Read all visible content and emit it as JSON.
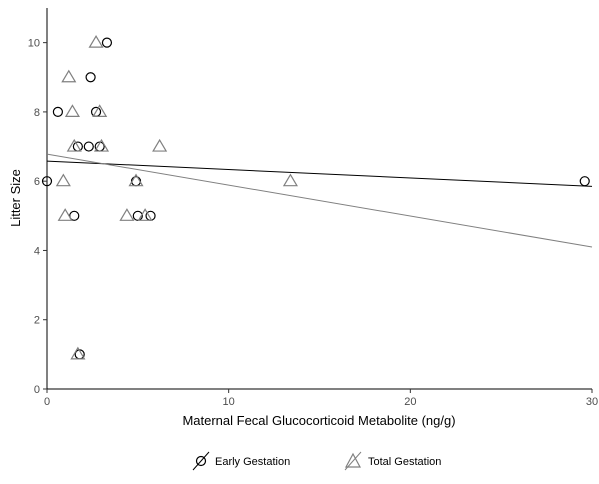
{
  "chart_data": {
    "type": "scatter",
    "xlabel": "Maternal Fecal Glucocorticoid Metabolite (ng/g)",
    "ylabel": "Litter Size",
    "xlim": [
      0,
      30
    ],
    "ylim": [
      0,
      11
    ],
    "x_ticks": [
      "0",
      "10",
      "20",
      "30"
    ],
    "y_ticks": [
      "0",
      "2",
      "4",
      "6",
      "8",
      "10"
    ],
    "grid": false,
    "legend_position": "bottom",
    "series": [
      {
        "name": "Early Gestation",
        "marker": "circle",
        "line_color": "#000000",
        "points": [
          {
            "x": 0.0,
            "y": 6
          },
          {
            "x": 0.6,
            "y": 8
          },
          {
            "x": 1.5,
            "y": 5
          },
          {
            "x": 1.7,
            "y": 7
          },
          {
            "x": 1.8,
            "y": 1
          },
          {
            "x": 2.3,
            "y": 7
          },
          {
            "x": 2.4,
            "y": 9
          },
          {
            "x": 2.7,
            "y": 8
          },
          {
            "x": 2.9,
            "y": 7
          },
          {
            "x": 3.3,
            "y": 10
          },
          {
            "x": 4.9,
            "y": 6
          },
          {
            "x": 5.0,
            "y": 5
          },
          {
            "x": 5.7,
            "y": 5
          },
          {
            "x": 29.6,
            "y": 6
          }
        ],
        "fit": {
          "x": [
            0,
            30
          ],
          "y": [
            6.58,
            5.85
          ]
        }
      },
      {
        "name": "Total Gestation",
        "marker": "triangle",
        "line_color": "#808080",
        "points": [
          {
            "x": 0.9,
            "y": 6
          },
          {
            "x": 1.0,
            "y": 5
          },
          {
            "x": 1.2,
            "y": 9
          },
          {
            "x": 1.4,
            "y": 8
          },
          {
            "x": 1.5,
            "y": 7
          },
          {
            "x": 1.7,
            "y": 1
          },
          {
            "x": 2.7,
            "y": 10
          },
          {
            "x": 2.9,
            "y": 8
          },
          {
            "x": 3.0,
            "y": 7
          },
          {
            "x": 4.4,
            "y": 5
          },
          {
            "x": 4.9,
            "y": 6
          },
          {
            "x": 5.4,
            "y": 5
          },
          {
            "x": 6.2,
            "y": 7
          },
          {
            "x": 13.4,
            "y": 6
          }
        ],
        "fit": {
          "x": [
            0,
            30
          ],
          "y": [
            6.78,
            4.1
          ]
        }
      }
    ]
  }
}
